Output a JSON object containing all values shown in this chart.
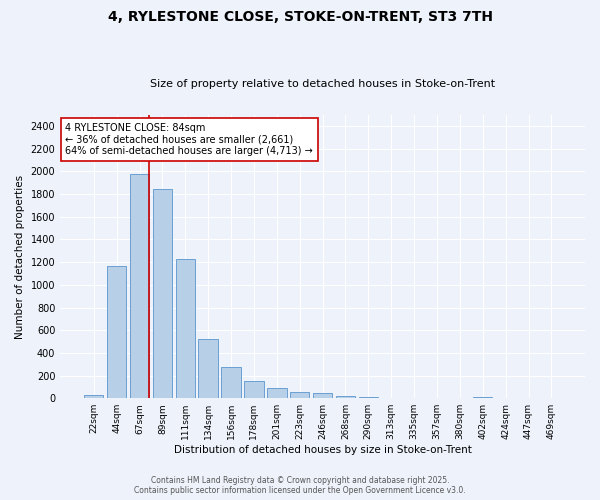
{
  "title": "4, RYLESTONE CLOSE, STOKE-ON-TRENT, ST3 7TH",
  "subtitle": "Size of property relative to detached houses in Stoke-on-Trent",
  "xlabel": "Distribution of detached houses by size in Stoke-on-Trent",
  "ylabel": "Number of detached properties",
  "categories": [
    "22sqm",
    "44sqm",
    "67sqm",
    "89sqm",
    "111sqm",
    "134sqm",
    "156sqm",
    "178sqm",
    "201sqm",
    "223sqm",
    "246sqm",
    "268sqm",
    "290sqm",
    "313sqm",
    "335sqm",
    "357sqm",
    "380sqm",
    "402sqm",
    "424sqm",
    "447sqm",
    "469sqm"
  ],
  "values": [
    25,
    1165,
    1980,
    1845,
    1230,
    525,
    275,
    155,
    90,
    55,
    45,
    18,
    8,
    5,
    3,
    2,
    2,
    10,
    2,
    2,
    2
  ],
  "bar_color": "#b8cfe8",
  "bar_edge_color": "#6a9fd4",
  "background_color": "#eef2fa",
  "grid_color": "#ffffff",
  "vline_color": "#cc0000",
  "annotation_text": "4 RYLESTONE CLOSE: 84sqm\n← 36% of detached houses are smaller (2,661)\n64% of semi-detached houses are larger (4,713) →",
  "annotation_box_color": "#ffffff",
  "annotation_box_edge": "#cc0000",
  "footer_line1": "Contains HM Land Registry data © Crown copyright and database right 2025.",
  "footer_line2": "Contains public sector information licensed under the Open Government Licence v3.0.",
  "ylim": [
    0,
    2500
  ],
  "yticks": [
    0,
    200,
    400,
    600,
    800,
    1000,
    1200,
    1400,
    1600,
    1800,
    2000,
    2200,
    2400
  ]
}
